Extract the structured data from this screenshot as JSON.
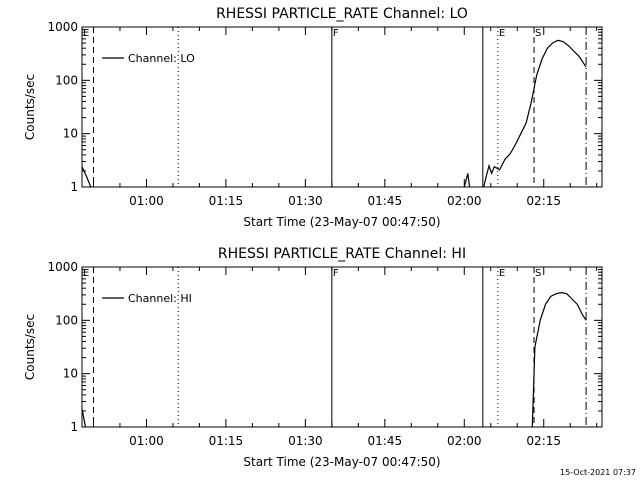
{
  "footer_timestamp": "15-Oct-2021 07:37",
  "chart_data": [
    {
      "type": "line",
      "title": "RHESSI PARTICLE_RATE Channel: LO",
      "xlabel": "Start Time (23-May-07 00:47:50)",
      "ylabel": "Counts/sec",
      "yscale": "log",
      "ylim": [
        1,
        1000
      ],
      "xlim": [
        "00:47:50",
        "02:26:00"
      ],
      "x_ticks": [
        "01:00",
        "01:15",
        "01:30",
        "01:45",
        "02:00",
        "02:15"
      ],
      "y_ticks": [
        "1",
        "10",
        "100",
        "1000"
      ],
      "legend": "Channel: LO",
      "legend_position": "top-left",
      "markers": [
        {
          "label": "E",
          "time": "00:47:50",
          "style": "solid"
        },
        {
          "label": "",
          "time": "00:50:00",
          "style": "dashed"
        },
        {
          "label": "",
          "time": "01:06:00",
          "style": "dotted"
        },
        {
          "label": "F",
          "time": "01:35:00",
          "style": "solid"
        },
        {
          "label": "",
          "time": "02:03:30",
          "style": "solid"
        },
        {
          "label": "E",
          "time": "02:06:20",
          "style": "dotted"
        },
        {
          "label": "S",
          "time": "02:13:10",
          "style": "dashed"
        },
        {
          "label": "",
          "time": "02:23:00",
          "style": "dashdot"
        }
      ],
      "series": [
        {
          "segments": [
            [
              [
                "00:47:50",
                2.4
              ],
              [
                "00:48:40",
                1.6
              ],
              [
                "00:49:30",
                1.0
              ]
            ],
            [
              [
                "02:00:00",
                1.0
              ],
              [
                "02:00:40",
                1.8
              ],
              [
                "02:01:00",
                1.0
              ]
            ],
            [
              [
                "02:03:40",
                1.0
              ],
              [
                "02:04:10",
                1.6
              ],
              [
                "02:04:40",
                2.5
              ],
              [
                "02:05:10",
                1.8
              ],
              [
                "02:05:40",
                2.4
              ],
              [
                "02:06:40",
                2.1
              ],
              [
                "02:07:40",
                3.3
              ],
              [
                "02:08:40",
                4.2
              ],
              [
                "02:09:40",
                6.3
              ],
              [
                "02:10:40",
                10.0
              ],
              [
                "02:11:40",
                15.8
              ],
              [
                "02:12:40",
                39.8
              ],
              [
                "02:13:40",
                125.9
              ],
              [
                "02:14:40",
                251.2
              ],
              [
                "02:15:40",
                398.1
              ],
              [
                "02:16:40",
                501.2
              ],
              [
                "02:17:40",
                562.3
              ],
              [
                "02:18:40",
                531.0
              ],
              [
                "02:19:40",
                446.7
              ],
              [
                "02:20:40",
                354.8
              ],
              [
                "02:21:40",
                281.8
              ],
              [
                "02:22:40",
                199.5
              ],
              [
                "02:23:00",
                177.8
              ]
            ]
          ]
        }
      ]
    },
    {
      "type": "line",
      "title": "RHESSI PARTICLE_RATE Channel: HI",
      "xlabel": "Start Time (23-May-07 00:47:50)",
      "ylabel": "Counts/sec",
      "yscale": "log",
      "ylim": [
        1,
        1000
      ],
      "xlim": [
        "00:47:50",
        "02:26:00"
      ],
      "x_ticks": [
        "01:00",
        "01:15",
        "01:30",
        "01:45",
        "02:00",
        "02:15"
      ],
      "y_ticks": [
        "1",
        "10",
        "100",
        "1000"
      ],
      "legend": "Channel: HI",
      "legend_position": "top-left",
      "markers": [
        {
          "label": "E",
          "time": "00:47:50",
          "style": "solid"
        },
        {
          "label": "",
          "time": "00:50:00",
          "style": "dashed"
        },
        {
          "label": "",
          "time": "01:06:00",
          "style": "dotted"
        },
        {
          "label": "F",
          "time": "01:35:00",
          "style": "solid"
        },
        {
          "label": "",
          "time": "02:03:30",
          "style": "solid"
        },
        {
          "label": "E",
          "time": "02:06:20",
          "style": "dotted"
        },
        {
          "label": "S",
          "time": "02:13:10",
          "style": "dashed"
        },
        {
          "label": "",
          "time": "02:23:00",
          "style": "dashdot"
        }
      ],
      "series": [
        {
          "segments": [
            [
              [
                "00:47:50",
                2.2
              ],
              [
                "00:48:30",
                1.0
              ]
            ],
            [
              [
                "02:12:50",
                1.0
              ],
              [
                "02:13:20",
                31.6
              ],
              [
                "02:14:20",
                100.0
              ],
              [
                "02:15:20",
                199.5
              ],
              [
                "02:16:20",
                281.8
              ],
              [
                "02:17:20",
                316.2
              ],
              [
                "02:18:20",
                331.1
              ],
              [
                "02:19:20",
                316.2
              ],
              [
                "02:20:20",
                251.2
              ],
              [
                "02:21:20",
                199.5
              ],
              [
                "02:22:20",
                125.9
              ],
              [
                "02:23:00",
                100.0
              ]
            ]
          ]
        }
      ]
    }
  ]
}
